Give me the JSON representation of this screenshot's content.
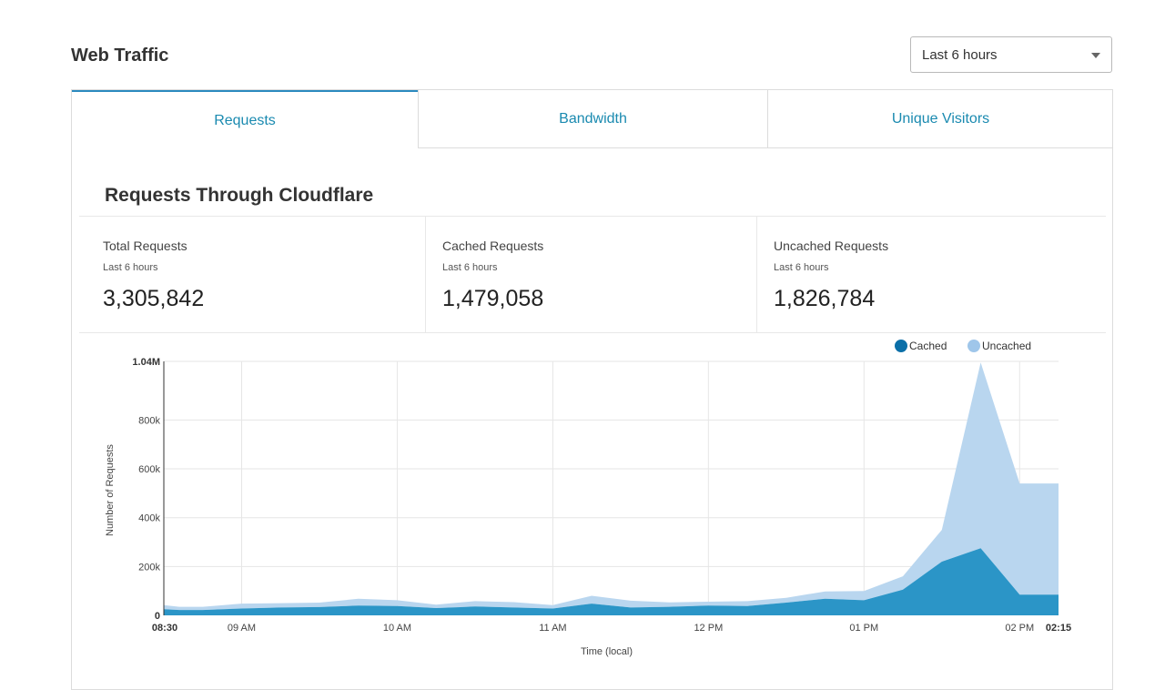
{
  "header": {
    "title": "Web Traffic",
    "range_select": {
      "value": "Last 6 hours"
    }
  },
  "tabs": [
    {
      "label": "Requests",
      "active": true
    },
    {
      "label": "Bandwidth",
      "active": false
    },
    {
      "label": "Unique Visitors",
      "active": false
    }
  ],
  "section": {
    "title": "Requests Through Cloudflare"
  },
  "stats": [
    {
      "label": "Total Requests",
      "sub": "Last 6 hours",
      "value": "3,305,842"
    },
    {
      "label": "Cached Requests",
      "sub": "Last 6 hours",
      "value": "1,479,058"
    },
    {
      "label": "Uncached Requests",
      "sub": "Last 6 hours",
      "value": "1,826,784"
    }
  ],
  "colors": {
    "accent": "#2b8abf",
    "tab_text": "#1a8ab0",
    "cached": "#2b95c7",
    "uncached": "#b9d6ef",
    "legend_cached": "#0b6fa8",
    "legend_uncached": "#9fc6ea"
  },
  "chart_data": {
    "type": "area",
    "stacked": true,
    "xlabel": "Time (local)",
    "ylabel": "Number of Requests",
    "ylim": [
      0,
      1040000
    ],
    "yticks": [
      {
        "value": 0,
        "label": "0",
        "bold": true
      },
      {
        "value": 200000,
        "label": "200k"
      },
      {
        "value": 400000,
        "label": "400k"
      },
      {
        "value": 600000,
        "label": "600k"
      },
      {
        "value": 800000,
        "label": "800k"
      },
      {
        "value": 1040000,
        "label": "1.04M",
        "bold": true
      }
    ],
    "xticks": [
      {
        "x": 0,
        "label": "08:30",
        "bold": true
      },
      {
        "x": 0.5,
        "label": "09 AM"
      },
      {
        "x": 1.5,
        "label": "10 AM"
      },
      {
        "x": 2.5,
        "label": "11 AM"
      },
      {
        "x": 3.5,
        "label": "12 PM"
      },
      {
        "x": 4.5,
        "label": "01 PM"
      },
      {
        "x": 5.5,
        "label": "02 PM"
      },
      {
        "x": 5.75,
        "label": "02:15",
        "bold": true
      }
    ],
    "legend": {
      "position": "top-right"
    },
    "x": [
      0,
      0.1,
      0.25,
      0.5,
      0.75,
      1,
      1.25,
      1.5,
      1.75,
      2,
      2.25,
      2.5,
      2.75,
      3,
      3.25,
      3.5,
      3.75,
      4,
      4.25,
      4.5,
      4.75,
      5,
      5.25,
      5.5,
      5.75
    ],
    "series": [
      {
        "name": "Cached",
        "values": [
          25000,
          22000,
          22000,
          28000,
          32000,
          34000,
          40000,
          38000,
          30000,
          36000,
          32000,
          28000,
          48000,
          32000,
          35000,
          40000,
          38000,
          52000,
          68000,
          62000,
          105000,
          220000,
          275000,
          85000,
          85000
        ]
      },
      {
        "name": "Uncached",
        "values": [
          17000,
          13000,
          13000,
          20000,
          18000,
          18000,
          28000,
          24000,
          14000,
          22000,
          22000,
          14000,
          32000,
          28000,
          18000,
          16000,
          20000,
          20000,
          30000,
          38000,
          55000,
          130000,
          760000,
          455000,
          455000
        ]
      }
    ]
  }
}
